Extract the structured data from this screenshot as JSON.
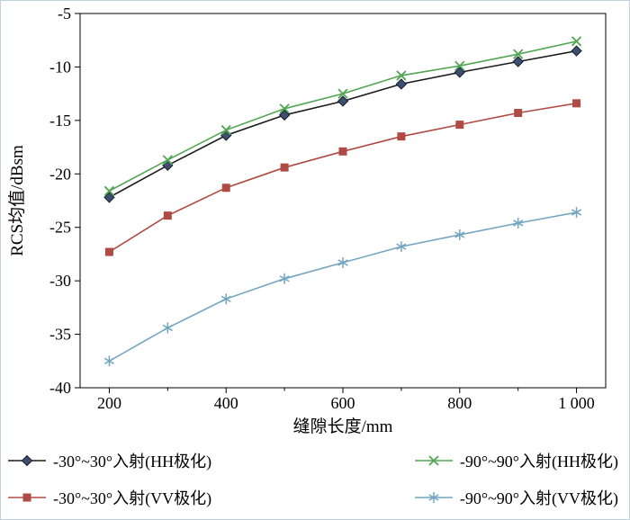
{
  "chart_data": {
    "type": "line",
    "title": "",
    "xlabel": "缝隙长度/mm",
    "ylabel": "RCS均值/dBsm",
    "xlim": [
      150,
      1050
    ],
    "ylim": [
      -40,
      -5
    ],
    "grid": false,
    "legend_position": "bottom",
    "legend_columns": 2,
    "x": [
      200,
      300,
      400,
      500,
      600,
      700,
      800,
      900,
      1000
    ],
    "x_major_ticks": [
      200,
      400,
      600,
      800,
      1000
    ],
    "x_tick_labels": [
      "200",
      "400",
      "600",
      "800",
      "1 000"
    ],
    "x_minor_ticks": [
      300,
      500,
      700,
      900
    ],
    "y_major_ticks": [
      -40,
      -35,
      -30,
      -25,
      -20,
      -15,
      -10,
      -5
    ],
    "y_tick_labels": [
      "-40",
      "-35",
      "-30",
      "-25",
      "-20",
      "-15",
      "-10",
      "-5"
    ],
    "series": [
      {
        "name": "-30°~30°入射(HH极化)",
        "marker": "diamond",
        "color": "#3d4e6e",
        "edge_color": "#141f2e",
        "line_color": "#1c1c1c",
        "values": [
          -22.2,
          -19.2,
          -16.4,
          -14.5,
          -13.2,
          -11.6,
          -10.5,
          -9.5,
          -8.5
        ]
      },
      {
        "name": "-30°~30°入射(VV极化)",
        "marker": "square",
        "color": "#b04a45",
        "edge_color": "#b04a45",
        "line_color": "#b04a45",
        "values": [
          -27.3,
          -23.9,
          -21.3,
          -19.4,
          -17.9,
          -16.5,
          -15.4,
          -14.3,
          -13.4
        ]
      },
      {
        "name": "-90°~90°入射(HH极化)",
        "marker": "x",
        "color": "#53a653",
        "edge_color": "#53a653",
        "line_color": "#53a653",
        "values": [
          -21.6,
          -18.7,
          -15.9,
          -13.9,
          -12.5,
          -10.8,
          -9.9,
          -8.8,
          -7.6
        ]
      },
      {
        "name": "-90°~90°入射(VV极化)",
        "marker": "asterisk",
        "color": "#74a5bf",
        "edge_color": "#74a5bf",
        "line_color": "#74a5bf",
        "values": [
          -37.5,
          -34.4,
          -31.7,
          -29.8,
          -28.3,
          -26.8,
          -25.7,
          -24.6,
          -23.6
        ]
      }
    ]
  }
}
